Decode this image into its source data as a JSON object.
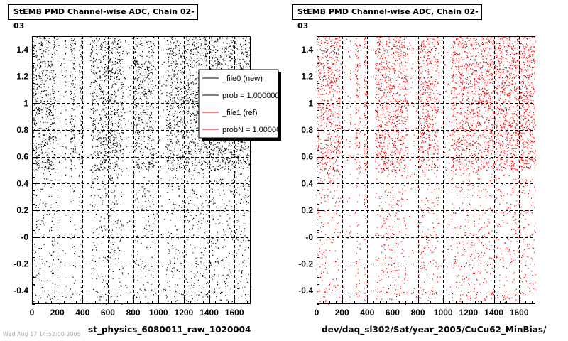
{
  "chart_data": [
    {
      "type": "scatter",
      "title": "StEMB PMD Channel-wise ADC, Chain 02-03",
      "xlabel": "st_physics_6080011_raw_1020004",
      "ylabel": "",
      "xlim": [
        0,
        1728
      ],
      "ylim": [
        -0.5,
        1.5
      ],
      "x_ticks": [
        "0",
        "200",
        "400",
        "600",
        "800",
        "1000",
        "1200",
        "1400",
        "1600"
      ],
      "y_ticks": [
        "-0.4",
        "-0.2",
        "-0",
        "0.2",
        "0.4",
        "0.6",
        "0.8",
        "1",
        "1.2",
        "1.4"
      ],
      "grid": true,
      "series": [
        {
          "name": "_file0 (new)",
          "color": "#000000",
          "dense_band_y": [
            0.5,
            1.5
          ],
          "sparse_band_y": [
            -0.5,
            0.5
          ],
          "empty_x_ranges": [
            [
              270,
              300
            ],
            [
              340,
              370
            ],
            [
              400,
              460
            ]
          ],
          "sparse_x_ranges": [
            [
              180,
              260
            ],
            [
              720,
              800
            ],
            [
              960,
              1060
            ]
          ]
        }
      ],
      "legend": {
        "placement": "top-right",
        "entries": [
          {
            "label": "_file0 (new)",
            "color": "#000000"
          },
          {
            "label": "prob = 1.000000",
            "color": "#000000"
          },
          {
            "label": "_file1 (ref)",
            "color": "#ff0000"
          },
          {
            "label": "probN = 1.000000",
            "color": "#ff0000"
          }
        ]
      }
    },
    {
      "type": "scatter",
      "title": "StEMB PMD Channel-wise ADC, Chain 02-03",
      "xlabel": "dev/daq_sl302/Sat/year_2005/CuCu62_MinBias/",
      "ylabel": "",
      "xlim": [
        0,
        1728
      ],
      "ylim": [
        -0.5,
        1.5
      ],
      "x_ticks": [
        "0",
        "200",
        "400",
        "600",
        "800",
        "1000",
        "1200",
        "1400",
        "1600"
      ],
      "y_ticks": [
        "-0.4",
        "-0.2",
        "-0",
        "0.2",
        "0.4",
        "0.6",
        "0.8",
        "1",
        "1.2",
        "1.4"
      ],
      "grid": true,
      "series": [
        {
          "name": "_file1 (ref)",
          "color": "#ff0000",
          "dense_band_y": [
            0.5,
            1.5
          ],
          "sparse_band_y": [
            -0.5,
            0.5
          ],
          "empty_x_ranges": [
            [
              270,
              300
            ],
            [
              340,
              370
            ],
            [
              400,
              460
            ]
          ],
          "sparse_x_ranges": [
            [
              180,
              260
            ],
            [
              720,
              800
            ],
            [
              960,
              1060
            ]
          ]
        }
      ]
    }
  ],
  "footer": {
    "left": "st_physics_6080011_raw_1020004",
    "right": "dev/daq_sl302/Sat/year_2005/CuCu62_MinBias/",
    "stamp": "Wed Aug 17 14:52:00 2005"
  }
}
